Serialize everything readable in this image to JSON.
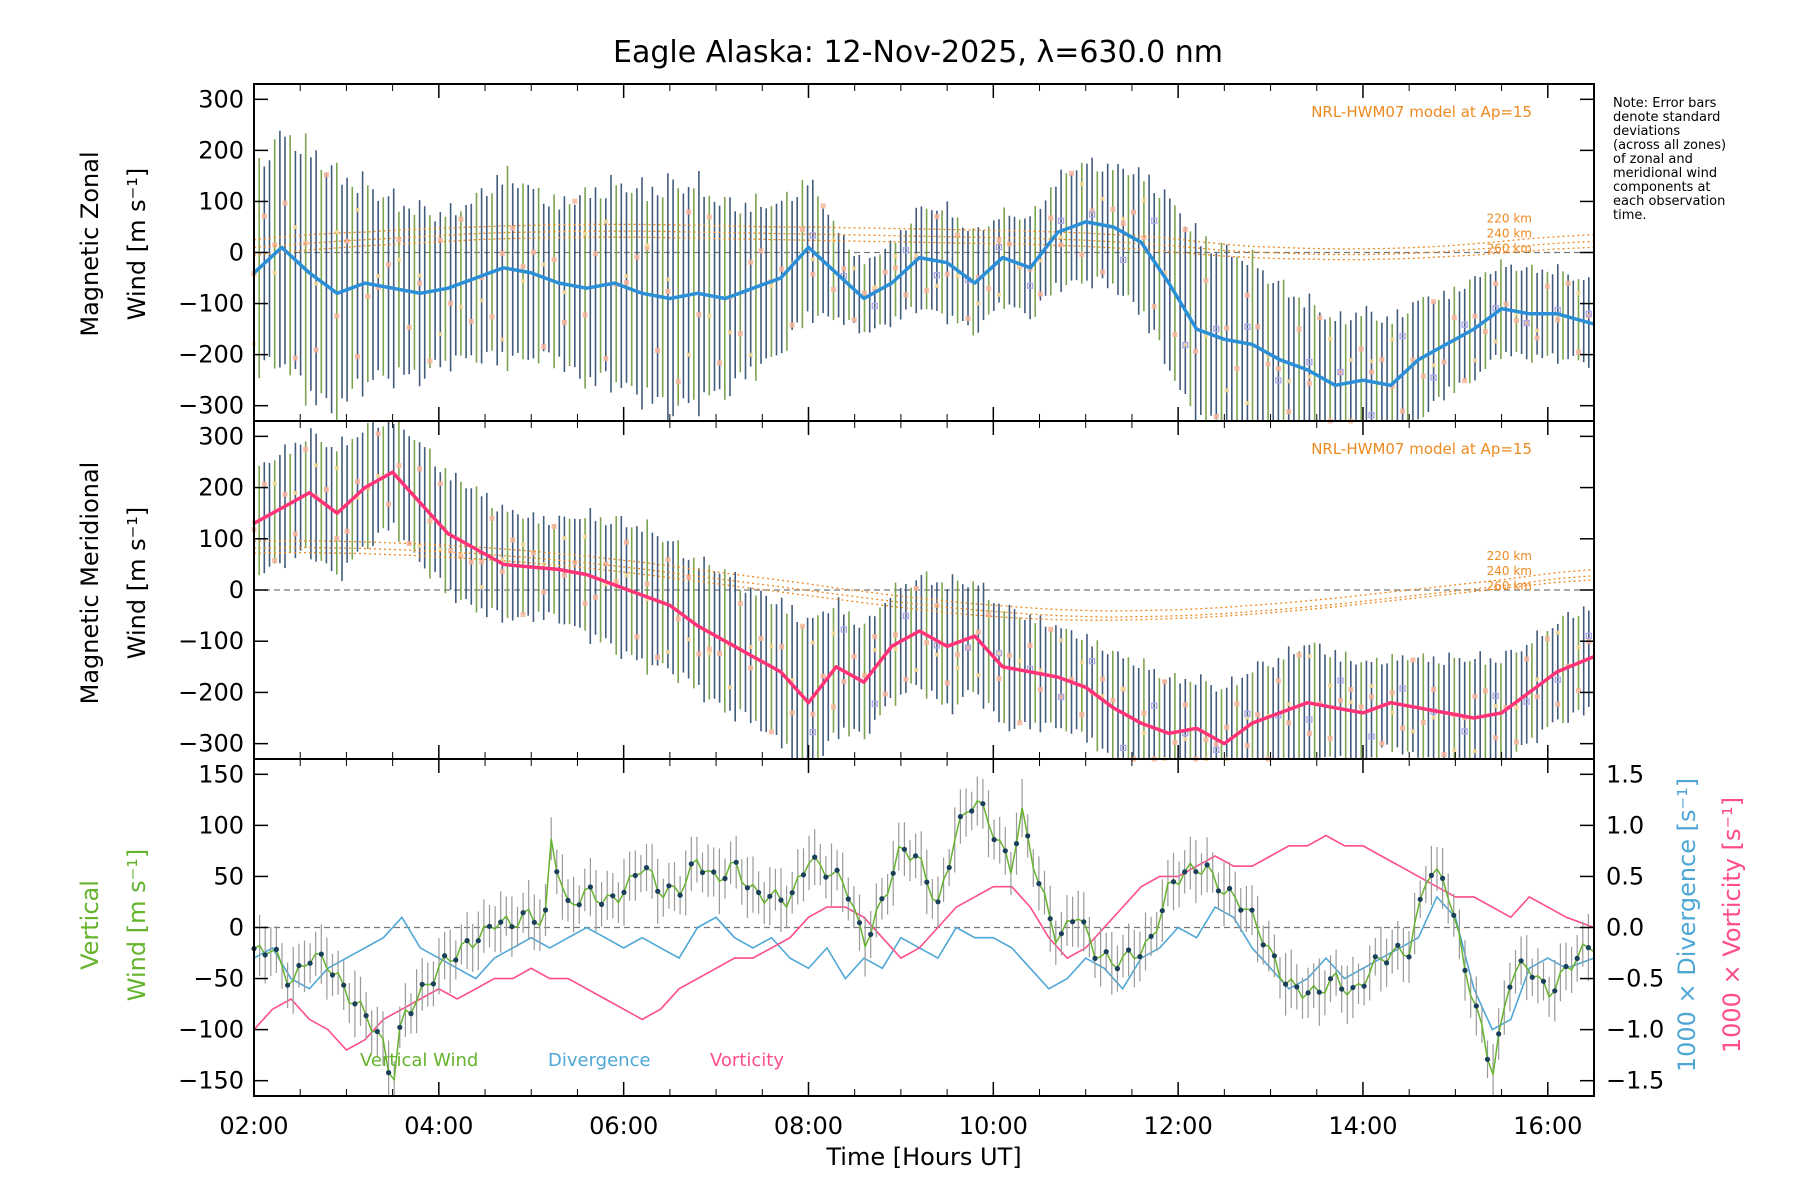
{
  "title": "Eagle Alaska: 12-Nov-2025, λ=630.0 nm",
  "note": [
    "Note: Error bars",
    "denote standard",
    "deviations",
    "(across all zones)",
    "of zonal and",
    "meridional wind",
    "components at",
    "each observation",
    "time."
  ],
  "xlabel": "Time [Hours UT]",
  "x_ticks": [
    "02:00",
    "04:00",
    "06:00",
    "08:00",
    "10:00",
    "12:00",
    "14:00",
    "16:00"
  ],
  "colors": {
    "zonal_mean": "#2b8fd8",
    "meridional_mean": "#ff3377",
    "model": "#ee8a22",
    "vertical": "#66b32e",
    "divergence": "#4fa7d6",
    "vorticity": "#ff4d88",
    "errorbar_dark": "#2d4a6e",
    "errorbar_green": "#6e9a3c",
    "zone_scatter": "#a9a7ea",
    "zone_pink": "#f7b49a",
    "zone_yellow": "#f3d899"
  },
  "chart_data": [
    {
      "id": "zonal",
      "type": "line",
      "ylabel_line1": "Magnetic Zonal",
      "ylabel_line2": "Wind [m s⁻¹]",
      "ylim": [
        -330,
        330
      ],
      "y_ticks": [
        "300",
        "200",
        "100",
        "0",
        "-100",
        "-200",
        "-300"
      ],
      "model_label": "NRL-HWM07 model at Ap=15",
      "model_altitudes": [
        "220 km",
        "240 km",
        "260 km"
      ],
      "x_hours": [
        2.0,
        2.3,
        2.6,
        2.9,
        3.2,
        3.5,
        3.8,
        4.1,
        4.4,
        4.7,
        5.0,
        5.3,
        5.6,
        5.9,
        6.2,
        6.5,
        6.8,
        7.1,
        7.4,
        7.7,
        8.0,
        8.3,
        8.6,
        8.9,
        9.2,
        9.5,
        9.8,
        10.1,
        10.4,
        10.7,
        11.0,
        11.3,
        11.6,
        11.9,
        12.2,
        12.5,
        12.8,
        13.1,
        13.4,
        13.7,
        14.0,
        14.3,
        14.6,
        14.9,
        15.2,
        15.5,
        15.8,
        16.1,
        16.5
      ],
      "mean_wind": [
        -40,
        10,
        -40,
        -80,
        -60,
        -70,
        -80,
        -70,
        -50,
        -30,
        -40,
        -60,
        -70,
        -60,
        -80,
        -90,
        -80,
        -90,
        -70,
        -50,
        10,
        -40,
        -90,
        -60,
        -10,
        -20,
        -60,
        -10,
        -30,
        40,
        60,
        50,
        20,
        -60,
        -150,
        -170,
        -180,
        -210,
        -230,
        -260,
        -250,
        -260,
        -210,
        -180,
        -150,
        -110,
        -120,
        -120,
        -140
      ],
      "std_dev": [
        200,
        230,
        250,
        240,
        200,
        180,
        170,
        150,
        160,
        190,
        170,
        160,
        190,
        200,
        210,
        230,
        220,
        190,
        170,
        150,
        140,
        90,
        70,
        80,
        100,
        110,
        100,
        90,
        100,
        110,
        120,
        120,
        140,
        170,
        190,
        180,
        170,
        150,
        140,
        130,
        140,
        130,
        120,
        100,
        100,
        90,
        90,
        90,
        80
      ],
      "model_220km": [
        25,
        30,
        35,
        38,
        40,
        43,
        46,
        48,
        50,
        52,
        53,
        54,
        55,
        55,
        55,
        54,
        53,
        52,
        51,
        50,
        50,
        49,
        48,
        47,
        46,
        45,
        44,
        43,
        42,
        40,
        38,
        35,
        32,
        28,
        22,
        16,
        12,
        10,
        8,
        7,
        7,
        8,
        10,
        13,
        17,
        22,
        27,
        31,
        35
      ],
      "model_240km": [
        10,
        14,
        18,
        22,
        25,
        28,
        31,
        34,
        37,
        39,
        40,
        41,
        42,
        42,
        42,
        41,
        40,
        39,
        38,
        37,
        36,
        35,
        34,
        33,
        32,
        31,
        30,
        29,
        28,
        26,
        24,
        21,
        18,
        14,
        9,
        4,
        1,
        -1,
        -3,
        -4,
        -4,
        -3,
        -1,
        2,
        6,
        10,
        14,
        18,
        22
      ],
      "model_260km": [
        -5,
        0,
        5,
        9,
        13,
        16,
        19,
        22,
        25,
        27,
        28,
        29,
        30,
        30,
        30,
        29,
        28,
        27,
        26,
        25,
        24,
        23,
        22,
        21,
        20,
        19,
        18,
        17,
        16,
        14,
        12,
        9,
        6,
        2,
        -3,
        -7,
        -10,
        -12,
        -13,
        -14,
        -14,
        -13,
        -11,
        -8,
        -5,
        -1,
        3,
        7,
        10
      ]
    },
    {
      "id": "meridional",
      "type": "line",
      "ylabel_line1": "Magnetic Meridional",
      "ylabel_line2": "Wind [m s⁻¹]",
      "ylim": [
        -330,
        330
      ],
      "y_ticks": [
        "300",
        "200",
        "100",
        "0",
        "-100",
        "-200",
        "-300"
      ],
      "model_label": "NRL-HWM07 model at Ap=15",
      "model_altitudes": [
        "220 km",
        "240 km",
        "260 km"
      ],
      "x_hours": [
        2.0,
        2.3,
        2.6,
        2.9,
        3.2,
        3.5,
        3.8,
        4.1,
        4.4,
        4.7,
        5.0,
        5.3,
        5.6,
        5.9,
        6.2,
        6.5,
        6.8,
        7.1,
        7.4,
        7.7,
        8.0,
        8.3,
        8.6,
        8.9,
        9.2,
        9.5,
        9.8,
        10.1,
        10.4,
        10.7,
        11.0,
        11.3,
        11.6,
        11.9,
        12.2,
        12.5,
        12.8,
        13.1,
        13.4,
        13.7,
        14.0,
        14.3,
        14.6,
        14.9,
        15.2,
        15.5,
        15.8,
        16.1,
        16.5
      ],
      "mean_wind": [
        130,
        160,
        190,
        150,
        200,
        230,
        170,
        110,
        80,
        50,
        45,
        40,
        30,
        10,
        -10,
        -30,
        -70,
        -100,
        -130,
        -160,
        -220,
        -150,
        -180,
        -110,
        -80,
        -110,
        -90,
        -150,
        -160,
        -170,
        -190,
        -230,
        -260,
        -280,
        -270,
        -300,
        -260,
        -240,
        -220,
        -230,
        -240,
        -220,
        -230,
        -240,
        -250,
        -240,
        -200,
        -160,
        -130
      ],
      "std_dev": [
        110,
        110,
        120,
        130,
        120,
        110,
        120,
        120,
        120,
        110,
        100,
        100,
        120,
        130,
        140,
        130,
        130,
        140,
        130,
        140,
        160,
        130,
        110,
        110,
        110,
        130,
        110,
        120,
        110,
        100,
        100,
        110,
        120,
        110,
        100,
        110,
        110,
        110,
        120,
        110,
        100,
        90,
        100,
        110,
        120,
        110,
        100,
        100,
        110
      ],
      "model_220km": [
        95,
        96,
        96,
        95,
        94,
        92,
        90,
        87,
        84,
        80,
        76,
        71,
        66,
        60,
        54,
        47,
        40,
        33,
        26,
        19,
        12,
        4,
        -3,
        -10,
        -16,
        -22,
        -27,
        -31,
        -35,
        -38,
        -40,
        -41,
        -40,
        -39,
        -37,
        -34,
        -30,
        -26,
        -21,
        -16,
        -10,
        -4,
        2,
        8,
        14,
        20,
        27,
        34,
        40
      ],
      "model_240km": [
        82,
        83,
        83,
        82,
        81,
        79,
        77,
        74,
        71,
        67,
        63,
        58,
        53,
        47,
        41,
        34,
        27,
        20,
        13,
        6,
        -1,
        -8,
        -15,
        -22,
        -28,
        -34,
        -39,
        -43,
        -47,
        -50,
        -52,
        -53,
        -52,
        -51,
        -49,
        -46,
        -42,
        -38,
        -33,
        -28,
        -22,
        -16,
        -10,
        -4,
        2,
        8,
        15,
        22,
        28
      ],
      "model_260km": [
        72,
        73,
        73,
        72,
        71,
        69,
        67,
        64,
        61,
        57,
        53,
        48,
        43,
        37,
        31,
        24,
        17,
        10,
        3,
        -4,
        -11,
        -18,
        -25,
        -32,
        -38,
        -44,
        -49,
        -53,
        -56,
        -58,
        -59,
        -59,
        -58,
        -56,
        -54,
        -51,
        -47,
        -43,
        -38,
        -33,
        -27,
        -21,
        -15,
        -9,
        -3,
        3,
        9,
        15,
        20
      ]
    },
    {
      "id": "vertical",
      "type": "line",
      "ylabel_left_line1": "Vertical",
      "ylabel_left_line2": "Wind [m s⁻¹]",
      "ylabel_right1": "1000 × Divergence [s⁻¹]",
      "ylabel_right2": "1000 × Vorticity [s⁻¹]",
      "ylim": [
        -165,
        165
      ],
      "y_ticks": [
        "150",
        "100",
        "50",
        "0",
        "-50",
        "-100",
        "-150"
      ],
      "y2lim": [
        -1.65,
        1.65
      ],
      "y2_ticks": [
        "1.5",
        "1.0",
        "0.5",
        "0.0",
        "-0.5",
        "-1.0",
        "-1.5"
      ],
      "legend": [
        "Vertical Wind",
        "Divergence",
        "Vorticity"
      ],
      "series": [
        {
          "name": "Vertical Wind",
          "x_hours": [
            2.0,
            2.2,
            2.4,
            2.6,
            2.8,
            3.0,
            3.2,
            3.4,
            3.5,
            3.6,
            3.8,
            4.0,
            4.2,
            4.4,
            4.6,
            4.8,
            5.0,
            5.15,
            5.2,
            5.4,
            5.6,
            5.8,
            6.0,
            6.2,
            6.4,
            6.6,
            6.8,
            7.0,
            7.2,
            7.4,
            7.6,
            7.8,
            8.0,
            8.2,
            8.4,
            8.6,
            8.8,
            9.0,
            9.2,
            9.4,
            9.6,
            9.8,
            10.0,
            10.2,
            10.3,
            10.5,
            10.7,
            10.9,
            11.1,
            11.3,
            11.5,
            11.7,
            11.9,
            12.1,
            12.3,
            12.5,
            12.7,
            12.9,
            13.1,
            13.3,
            13.5,
            13.7,
            13.9,
            14.1,
            14.3,
            14.5,
            14.7,
            14.9,
            15.1,
            15.3,
            15.4,
            15.6,
            15.8,
            16.0,
            16.2,
            16.5
          ],
          "values": [
            -30,
            -20,
            -50,
            -30,
            -40,
            -60,
            -80,
            -120,
            -160,
            -90,
            -60,
            -40,
            -30,
            -10,
            10,
            0,
            10,
            5,
            95,
            20,
            30,
            25,
            40,
            60,
            30,
            40,
            70,
            40,
            60,
            40,
            30,
            20,
            70,
            60,
            40,
            -20,
            30,
            80,
            60,
            20,
            100,
            125,
            90,
            60,
            120,
            40,
            -20,
            20,
            -20,
            -40,
            -30,
            -10,
            40,
            50,
            60,
            40,
            20,
            -10,
            -40,
            -60,
            -70,
            -50,
            -60,
            -40,
            -30,
            -20,
            60,
            40,
            -40,
            -100,
            -140,
            -50,
            -40,
            -60,
            -40,
            -20
          ],
          "errorbar": 30
        },
        {
          "name": "Divergence",
          "x_hours": [
            2.0,
            2.2,
            2.4,
            2.6,
            2.8,
            3.0,
            3.2,
            3.4,
            3.6,
            3.8,
            4.0,
            4.2,
            4.4,
            4.6,
            4.8,
            5.0,
            5.2,
            5.4,
            5.6,
            5.8,
            6.0,
            6.2,
            6.4,
            6.6,
            6.8,
            7.0,
            7.2,
            7.4,
            7.6,
            7.8,
            8.0,
            8.2,
            8.4,
            8.6,
            8.8,
            9.0,
            9.2,
            9.4,
            9.6,
            9.8,
            10.0,
            10.2,
            10.4,
            10.6,
            10.8,
            11.0,
            11.2,
            11.4,
            11.6,
            11.8,
            12.0,
            12.2,
            12.4,
            12.6,
            12.8,
            13.0,
            13.2,
            13.4,
            13.6,
            13.8,
            14.0,
            14.2,
            14.4,
            14.6,
            14.8,
            15.0,
            15.2,
            15.4,
            15.6,
            15.8,
            16.0,
            16.2,
            16.5
          ],
          "values": [
            -0.3,
            -0.2,
            -0.5,
            -0.6,
            -0.4,
            -0.3,
            -0.2,
            -0.1,
            0.1,
            -0.2,
            -0.3,
            -0.4,
            -0.5,
            -0.3,
            -0.2,
            -0.1,
            -0.2,
            -0.1,
            0.0,
            -0.1,
            -0.2,
            -0.1,
            -0.2,
            -0.3,
            0.0,
            0.1,
            -0.1,
            -0.2,
            -0.1,
            -0.3,
            -0.4,
            -0.2,
            -0.5,
            -0.3,
            -0.4,
            -0.1,
            -0.2,
            -0.3,
            0.0,
            -0.1,
            -0.1,
            -0.2,
            -0.4,
            -0.6,
            -0.5,
            -0.3,
            -0.4,
            -0.6,
            -0.3,
            -0.2,
            0.0,
            -0.1,
            0.2,
            0.1,
            -0.2,
            -0.4,
            -0.6,
            -0.5,
            -0.3,
            -0.5,
            -0.4,
            -0.3,
            -0.2,
            -0.1,
            0.3,
            0.1,
            -0.6,
            -1.0,
            -0.9,
            -0.4,
            -0.3,
            -0.4,
            -0.3
          ],
          "y_axis": "right"
        },
        {
          "name": "Vorticity",
          "x_hours": [
            2.0,
            2.2,
            2.4,
            2.6,
            2.8,
            3.0,
            3.2,
            3.4,
            3.6,
            3.8,
            4.0,
            4.2,
            4.4,
            4.6,
            4.8,
            5.0,
            5.2,
            5.4,
            5.6,
            5.8,
            6.0,
            6.2,
            6.4,
            6.6,
            6.8,
            7.0,
            7.2,
            7.4,
            7.6,
            7.8,
            8.0,
            8.2,
            8.4,
            8.6,
            8.8,
            9.0,
            9.2,
            9.4,
            9.6,
            9.8,
            10.0,
            10.2,
            10.4,
            10.6,
            10.8,
            11.0,
            11.2,
            11.4,
            11.6,
            11.8,
            12.0,
            12.2,
            12.4,
            12.6,
            12.8,
            13.0,
            13.2,
            13.4,
            13.6,
            13.8,
            14.0,
            14.2,
            14.4,
            14.6,
            14.8,
            15.0,
            15.2,
            15.4,
            15.6,
            15.8,
            16.0,
            16.2,
            16.5
          ],
          "values": [
            -1.0,
            -0.8,
            -0.7,
            -0.9,
            -1.0,
            -1.2,
            -1.1,
            -0.9,
            -0.8,
            -0.7,
            -0.6,
            -0.7,
            -0.6,
            -0.5,
            -0.5,
            -0.4,
            -0.5,
            -0.5,
            -0.6,
            -0.7,
            -0.8,
            -0.9,
            -0.8,
            -0.6,
            -0.5,
            -0.4,
            -0.3,
            -0.3,
            -0.2,
            -0.1,
            0.1,
            0.2,
            0.2,
            0.1,
            -0.1,
            -0.3,
            -0.2,
            0.0,
            0.2,
            0.3,
            0.4,
            0.4,
            0.2,
            -0.1,
            -0.3,
            -0.2,
            0.0,
            0.2,
            0.4,
            0.5,
            0.5,
            0.6,
            0.7,
            0.6,
            0.6,
            0.7,
            0.8,
            0.8,
            0.9,
            0.8,
            0.8,
            0.7,
            0.6,
            0.5,
            0.4,
            0.3,
            0.3,
            0.2,
            0.1,
            0.3,
            0.2,
            0.1,
            0.0
          ],
          "y_axis": "right"
        }
      ]
    }
  ]
}
